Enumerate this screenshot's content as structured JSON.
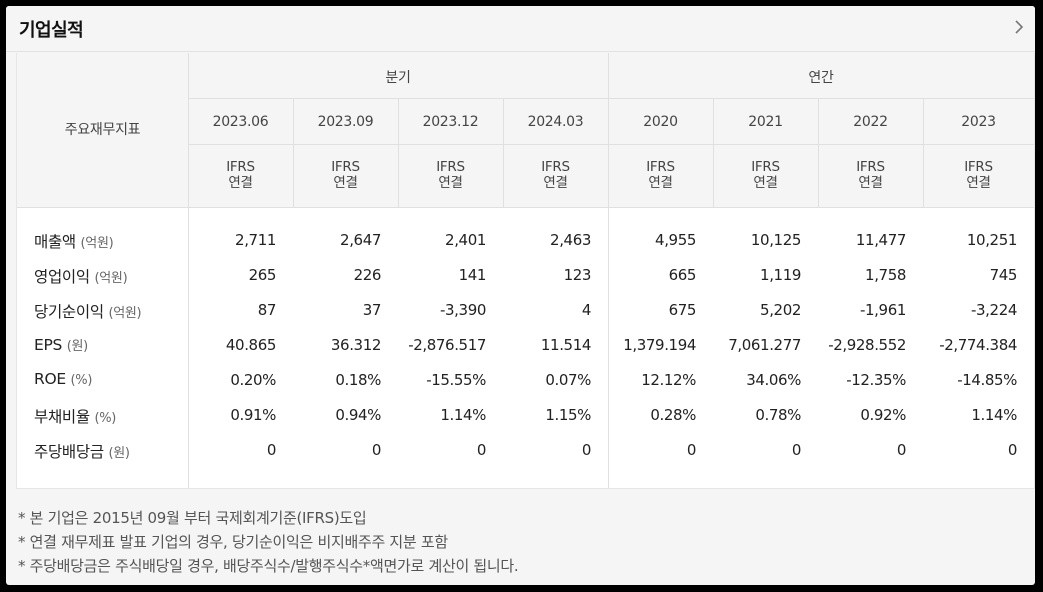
{
  "panel": {
    "title": "기업실적",
    "chevron_icon": "chevron-right-icon"
  },
  "table": {
    "corner_label": "주요재무지표",
    "groups": [
      "분기",
      "연간"
    ],
    "periods": [
      "2023.06",
      "2023.09",
      "2023.12",
      "2024.03",
      "2020",
      "2021",
      "2022",
      "2023"
    ],
    "standard_line1": "IFRS",
    "standard_line2": "연결",
    "rows": [
      {
        "label": "매출액",
        "unit": "(억원)",
        "values": [
          "2,711",
          "2,647",
          "2,401",
          "2,463",
          "4,955",
          "10,125",
          "11,477",
          "10,251"
        ]
      },
      {
        "label": "영업이익",
        "unit": "(억원)",
        "values": [
          "265",
          "226",
          "141",
          "123",
          "665",
          "1,119",
          "1,758",
          "745"
        ]
      },
      {
        "label": "당기순이익",
        "unit": "(억원)",
        "values": [
          "87",
          "37",
          "-3,390",
          "4",
          "675",
          "5,202",
          "-1,961",
          "-3,224"
        ]
      },
      {
        "label": "EPS",
        "unit": "(원)",
        "values": [
          "40.865",
          "36.312",
          "-2,876.517",
          "11.514",
          "1,379.194",
          "7,061.277",
          "-2,928.552",
          "-2,774.384"
        ]
      },
      {
        "label": "ROE",
        "unit": "(%)",
        "values": [
          "0.20%",
          "0.18%",
          "-15.55%",
          "0.07%",
          "12.12%",
          "34.06%",
          "-12.35%",
          "-14.85%"
        ]
      },
      {
        "label": "부채비율",
        "unit": "(%)",
        "values": [
          "0.91%",
          "0.94%",
          "1.14%",
          "1.15%",
          "0.28%",
          "0.78%",
          "0.92%",
          "1.14%"
        ]
      },
      {
        "label": "주당배당금",
        "unit": "(원)",
        "values": [
          "0",
          "0",
          "0",
          "0",
          "0",
          "0",
          "0",
          "0"
        ]
      }
    ]
  },
  "notes": [
    "* 본 기업은 2015년 09월 부터 국제회계기준(IFRS)도입",
    "* 연결 재무제표 발표 기업의 경우, 당기순이익은 비지배주주 지분 포함",
    "* 주당배당금은 주식배당일 경우, 배당주식수/발행주식수*액면가로 계산이 됩니다."
  ]
}
